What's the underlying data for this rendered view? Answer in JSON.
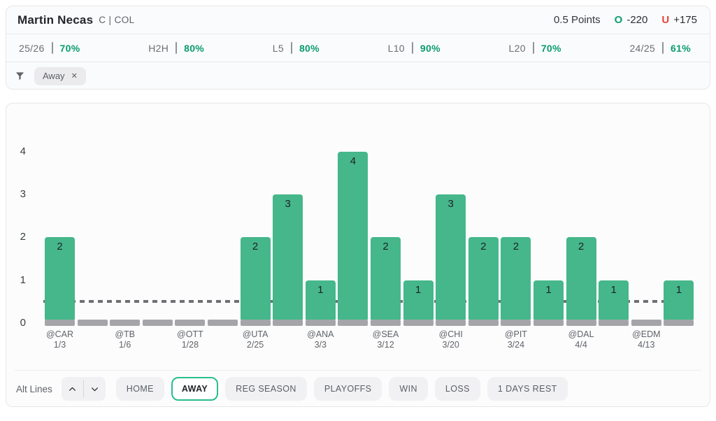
{
  "header": {
    "player": "Martin Necas",
    "meta": "C | COL",
    "line": "0.5 Points",
    "over": {
      "label": "O",
      "odds": "-220"
    },
    "under": {
      "label": "U",
      "odds": "+175"
    }
  },
  "stats": [
    {
      "label": "25/26",
      "value": "70%"
    },
    {
      "label": "H2H",
      "value": "80%"
    },
    {
      "label": "L5",
      "value": "80%"
    },
    {
      "label": "L10",
      "value": "90%"
    },
    {
      "label": "L20",
      "value": "70%"
    },
    {
      "label": "24/25",
      "value": "61%"
    }
  ],
  "filter": {
    "chip_label": "Away",
    "chip_close": "✕"
  },
  "chart_data": {
    "type": "bar",
    "title": "",
    "xlabel": "",
    "ylabel": "",
    "ylim": [
      0,
      4.6
    ],
    "yticks": [
      0,
      1,
      2,
      3,
      4
    ],
    "threshold": 0.5,
    "grid": false,
    "legend": false,
    "bar_color": "#45b78b",
    "zero_bar_color": "#a5a5a9",
    "threshold_color": "#6f7073",
    "bars": [
      {
        "value": 2,
        "team": "@CAR",
        "date": "1/3"
      },
      {
        "value": 0,
        "team": "",
        "date": ""
      },
      {
        "value": 0,
        "team": "@TB",
        "date": "1/6"
      },
      {
        "value": 0,
        "team": "",
        "date": ""
      },
      {
        "value": 0,
        "team": "@OTT",
        "date": "1/28"
      },
      {
        "value": 0,
        "team": "",
        "date": ""
      },
      {
        "value": 2,
        "team": "@UTA",
        "date": "2/25"
      },
      {
        "value": 3,
        "team": "",
        "date": ""
      },
      {
        "value": 1,
        "team": "@ANA",
        "date": "3/3"
      },
      {
        "value": 4,
        "team": "",
        "date": ""
      },
      {
        "value": 2,
        "team": "@SEA",
        "date": "3/12"
      },
      {
        "value": 1,
        "team": "",
        "date": ""
      },
      {
        "value": 3,
        "team": "@CHI",
        "date": "3/20"
      },
      {
        "value": 2,
        "team": "",
        "date": ""
      },
      {
        "value": 2,
        "team": "@PIT",
        "date": "3/24"
      },
      {
        "value": 1,
        "team": "",
        "date": ""
      },
      {
        "value": 2,
        "team": "@DAL",
        "date": "4/4"
      },
      {
        "value": 1,
        "team": "",
        "date": ""
      },
      {
        "value": 0,
        "team": "@EDM",
        "date": "4/13"
      },
      {
        "value": 1,
        "team": "",
        "date": ""
      }
    ]
  },
  "controls": {
    "alt_lines_label": "Alt Lines",
    "buttons": [
      {
        "label": "HOME",
        "selected": false
      },
      {
        "label": "AWAY",
        "selected": true
      },
      {
        "label": "REG SEASON",
        "selected": false
      },
      {
        "label": "PLAYOFFS",
        "selected": false
      },
      {
        "label": "WIN",
        "selected": false
      },
      {
        "label": "LOSS",
        "selected": false
      },
      {
        "label": "1 DAYS REST",
        "selected": false
      }
    ]
  },
  "colors": {
    "accent_green": "#0d9e6e",
    "accent_red": "#e8433c",
    "selected_border": "#2abd8e"
  }
}
